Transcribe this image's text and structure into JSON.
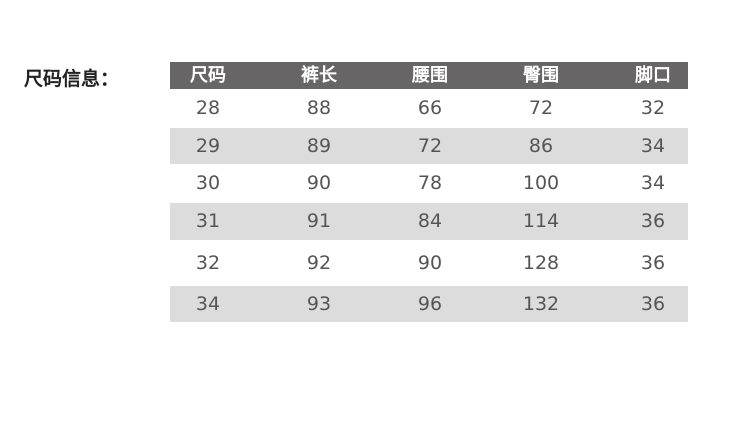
{
  "title": "尺码信息：",
  "colors": {
    "header_bg": "#676565",
    "stripe_bg": "#dcdcdc",
    "text": "#555555"
  },
  "headers": [
    "尺码",
    "裤长",
    "腰围",
    "臀围",
    "脚口"
  ],
  "rows": [
    [
      "28",
      "88",
      "66",
      "72",
      "32"
    ],
    [
      "29",
      "89",
      "72",
      "86",
      "34"
    ],
    [
      "30",
      "90",
      "78",
      "100",
      "34"
    ],
    [
      "31",
      "91",
      "84",
      "114",
      "36"
    ],
    [
      "32",
      "92",
      "90",
      "128",
      "36"
    ],
    [
      "34",
      "93",
      "96",
      "132",
      "36"
    ]
  ]
}
